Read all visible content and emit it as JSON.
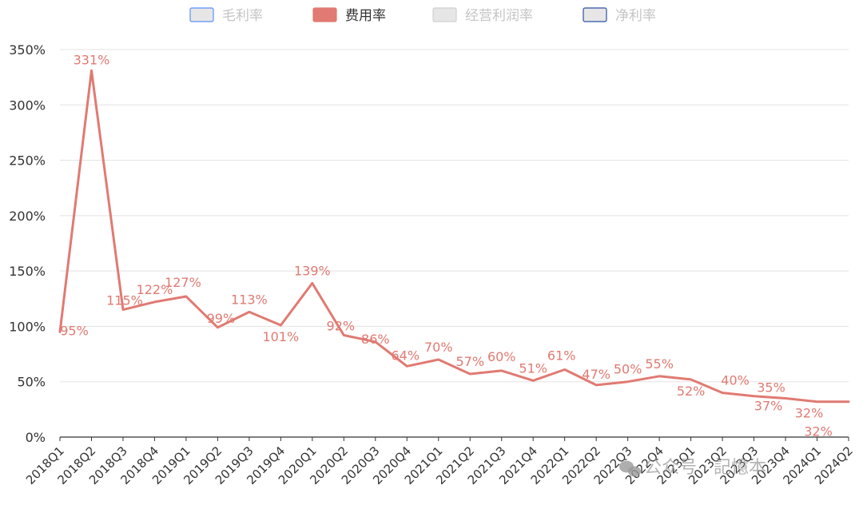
{
  "chart_data": {
    "type": "line",
    "title": "",
    "xlabel": "",
    "ylabel": "",
    "ylim": [
      0,
      350
    ],
    "yticks": [
      0,
      50,
      100,
      150,
      200,
      250,
      300,
      350
    ],
    "y_unit": "%",
    "grid": true,
    "legend_position": "top",
    "categories": [
      "2018Q1",
      "2018Q2",
      "2018Q3",
      "2018Q4",
      "2019Q1",
      "2019Q2",
      "2019Q3",
      "2019Q4",
      "2020Q1",
      "2020Q2",
      "2020Q3",
      "2020Q4",
      "2021Q1",
      "2021Q2",
      "2021Q3",
      "2021Q4",
      "2022Q1",
      "2022Q2",
      "2022Q3",
      "2022Q4",
      "2023Q1",
      "2023Q2",
      "2023Q3",
      "2023Q4",
      "2024Q1",
      "2024Q2"
    ],
    "legend": [
      {
        "name": "毛利率",
        "active": false,
        "swatch_fill": "#e6e6e6",
        "swatch_stroke": "#5b8ff9"
      },
      {
        "name": "费用率",
        "active": true,
        "swatch_fill": "#e07a72",
        "swatch_stroke": "#e07a72"
      },
      {
        "name": "经营利润率",
        "active": false,
        "swatch_fill": "#e6e6e6",
        "swatch_stroke": "#d0d0d0"
      },
      {
        "name": "净利率",
        "active": false,
        "swatch_fill": "#e6e6e6",
        "swatch_stroke": "#2f4fa8"
      }
    ],
    "series": [
      {
        "name": "费用率",
        "color": "#e07a72",
        "values": [
          95,
          331,
          115,
          122,
          127,
          99,
          113,
          101,
          139,
          92,
          86,
          64,
          70,
          57,
          60,
          51,
          61,
          47,
          50,
          55,
          52,
          40,
          37,
          35,
          32,
          32
        ],
        "labels": [
          "95%",
          "331%",
          "115%",
          "122%",
          "127%",
          "99%",
          "113%",
          "101%",
          "139%",
          "92%",
          "86%",
          "64%",
          "70%",
          "57%",
          "60%",
          "51%",
          "61%",
          "47%",
          "50%",
          "55%",
          "52%",
          "40%",
          "37%",
          "35%",
          "32%",
          "32%"
        ]
      }
    ]
  },
  "watermark": {
    "icon": "wechat-icon",
    "text": "公众号 · 記憶本"
  }
}
